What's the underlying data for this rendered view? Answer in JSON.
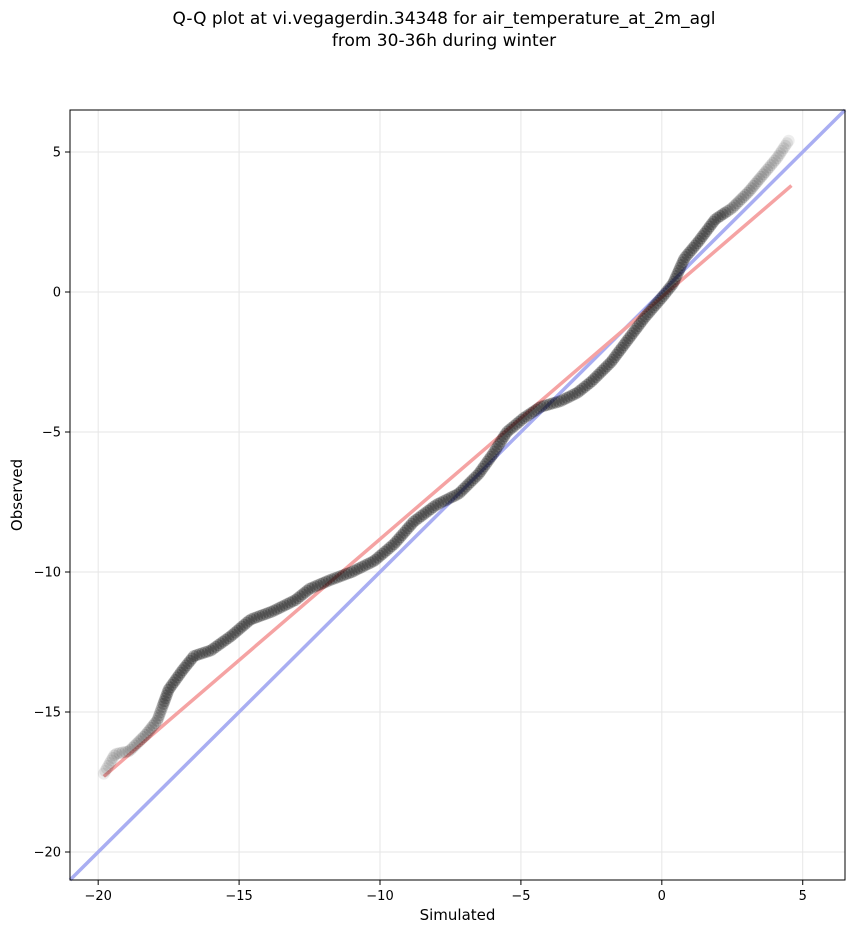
{
  "chart_data": {
    "type": "scatter",
    "title": [
      "Q-Q plot at vi.vegagerdin.34348 for air_temperature_at_2m_agl",
      "from 30-36h during winter"
    ],
    "xlabel": "Simulated",
    "ylabel": "Observed",
    "xlim": [
      -21.0,
      6.5
    ],
    "ylim": [
      -21.0,
      6.5
    ],
    "xticks": [
      -20,
      -15,
      -10,
      -5,
      0,
      5
    ],
    "yticks": [
      -20,
      -15,
      -10,
      -5,
      0,
      5
    ],
    "xtick_labels": [
      "−20",
      "−15",
      "−10",
      "−5",
      "0",
      "5"
    ],
    "ytick_labels": [
      "−20",
      "−15",
      "−10",
      "−5",
      "0",
      "5"
    ],
    "grid": true,
    "colors": {
      "points": "#000000",
      "fit_line": "#f5a3a3",
      "identity_line": "#a9aef2",
      "grid": "#e6e6e6"
    },
    "quantile_curve": [
      [
        -19.8,
        -17.2
      ],
      [
        -19.4,
        -16.5
      ],
      [
        -18.9,
        -16.4
      ],
      [
        -18.3,
        -15.8
      ],
      [
        -17.9,
        -15.3
      ],
      [
        -17.5,
        -14.2
      ],
      [
        -17.0,
        -13.5
      ],
      [
        -16.6,
        -13.0
      ],
      [
        -16.0,
        -12.8
      ],
      [
        -15.3,
        -12.3
      ],
      [
        -14.6,
        -11.7
      ],
      [
        -13.8,
        -11.4
      ],
      [
        -13.0,
        -11.0
      ],
      [
        -12.5,
        -10.6
      ],
      [
        -11.8,
        -10.3
      ],
      [
        -11.0,
        -10.0
      ],
      [
        -10.2,
        -9.6
      ],
      [
        -9.5,
        -9.0
      ],
      [
        -8.8,
        -8.2
      ],
      [
        -8.0,
        -7.6
      ],
      [
        -7.2,
        -7.2
      ],
      [
        -6.5,
        -6.5
      ],
      [
        -6.0,
        -5.8
      ],
      [
        -5.5,
        -5.0
      ],
      [
        -4.9,
        -4.5
      ],
      [
        -4.3,
        -4.1
      ],
      [
        -3.6,
        -3.9
      ],
      [
        -3.0,
        -3.6
      ],
      [
        -2.5,
        -3.2
      ],
      [
        -1.8,
        -2.5
      ],
      [
        -1.2,
        -1.7
      ],
      [
        -0.6,
        -0.9
      ],
      [
        0.0,
        -0.2
      ],
      [
        0.4,
        0.3
      ],
      [
        0.8,
        1.2
      ],
      [
        1.3,
        1.8
      ],
      [
        1.9,
        2.6
      ],
      [
        2.5,
        3.0
      ],
      [
        3.1,
        3.6
      ],
      [
        3.6,
        4.2
      ],
      [
        4.1,
        4.8
      ],
      [
        4.5,
        5.4
      ]
    ],
    "fit_line": {
      "x": [
        -19.8,
        4.6
      ],
      "y": [
        -17.3,
        3.8
      ]
    },
    "identity_line": {
      "x": [
        -21.0,
        6.5
      ],
      "y": [
        -21.0,
        6.5
      ]
    }
  }
}
